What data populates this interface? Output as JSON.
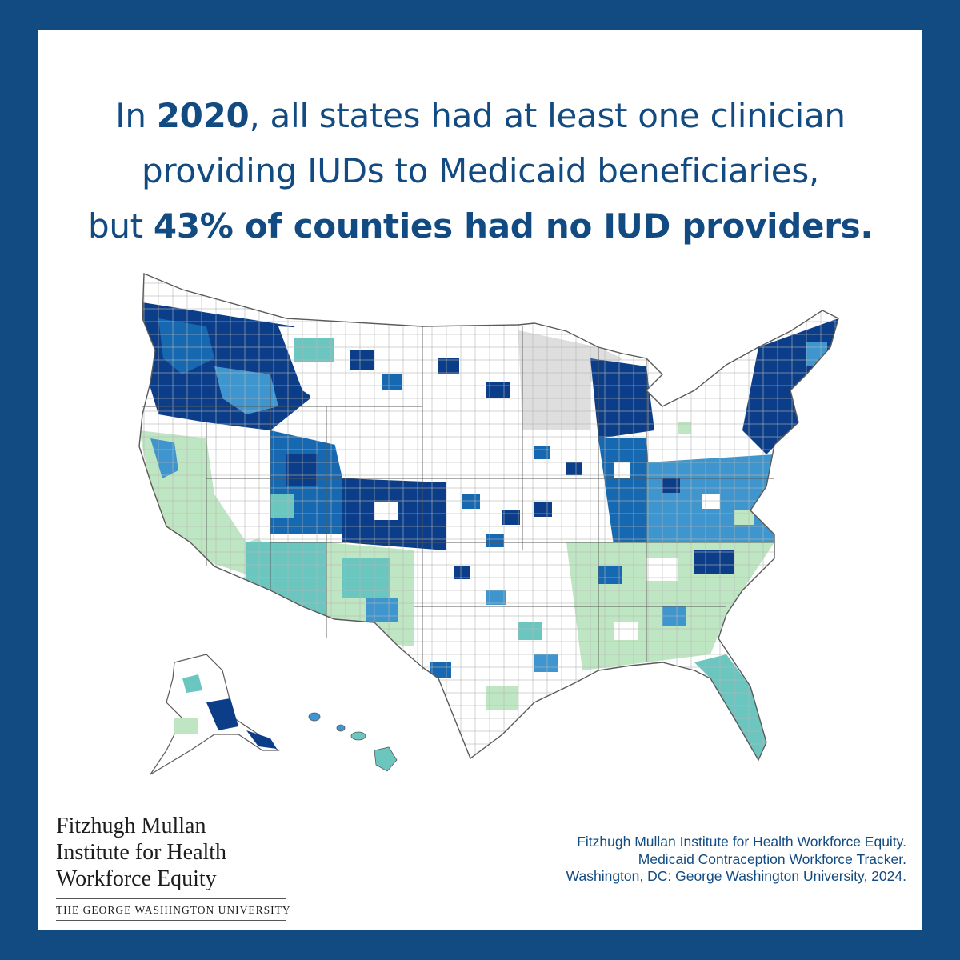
{
  "headline": {
    "line1_pre": "In ",
    "line1_bold": "2020",
    "line1_post": ", all states had at least one clinician",
    "line2": "providing IUDs to Medicaid beneficiaries,",
    "line3_pre": "but ",
    "line3_bold": "43% of counties had no IUD providers."
  },
  "map": {
    "description_colors": {
      "none": "#ffffff",
      "no_data": "#dedede",
      "low": "#bfe6c2",
      "medium_low": "#6cc6c0",
      "medium": "#3f96cf",
      "medium_high": "#1669b0",
      "high": "#0b3d89",
      "border": "#5a5a5a"
    }
  },
  "logo": {
    "line1": "Fitzhugh Mullan",
    "line2": "Institute for Health",
    "line3": "Workforce Equity",
    "university": "THE GEORGE WASHINGTON UNIVERSITY"
  },
  "citation": {
    "line1": "Fitzhugh Mullan Institute for Health Workforce Equity.",
    "line2": "Medicaid Contraception Workforce Tracker.",
    "line3": "Washington, DC: George Washington University, 2024."
  },
  "colors": {
    "frame": "#124b82",
    "text": "#124b82"
  }
}
